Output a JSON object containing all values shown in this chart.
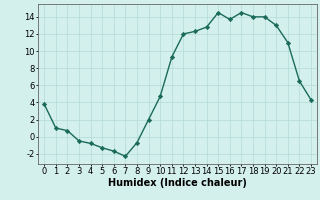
{
  "x": [
    0,
    1,
    2,
    3,
    4,
    5,
    6,
    7,
    8,
    9,
    10,
    11,
    12,
    13,
    14,
    15,
    16,
    17,
    18,
    19,
    20,
    21,
    22,
    23
  ],
  "y": [
    3.8,
    1.0,
    0.7,
    -0.5,
    -0.8,
    -1.3,
    -1.7,
    -2.3,
    -0.7,
    2.0,
    4.7,
    9.3,
    12.0,
    12.3,
    12.8,
    14.5,
    13.7,
    14.5,
    14.0,
    14.0,
    13.0,
    11.0,
    6.5,
    4.3
  ],
  "color": "#1a6b5a",
  "bg_color": "#d4f0ec",
  "grid_color": "#b8ddd8",
  "xlabel": "Humidex (Indice chaleur)",
  "ylim": [
    -3.2,
    15.5
  ],
  "xlim": [
    -0.5,
    23.5
  ],
  "yticks": [
    -2,
    0,
    2,
    4,
    6,
    8,
    10,
    12,
    14
  ],
  "xticks": [
    0,
    1,
    2,
    3,
    4,
    5,
    6,
    7,
    8,
    9,
    10,
    11,
    12,
    13,
    14,
    15,
    16,
    17,
    18,
    19,
    20,
    21,
    22,
    23
  ],
  "marker": "D",
  "markersize": 2.2,
  "linewidth": 1.0,
  "xlabel_fontsize": 7,
  "tick_fontsize": 6
}
